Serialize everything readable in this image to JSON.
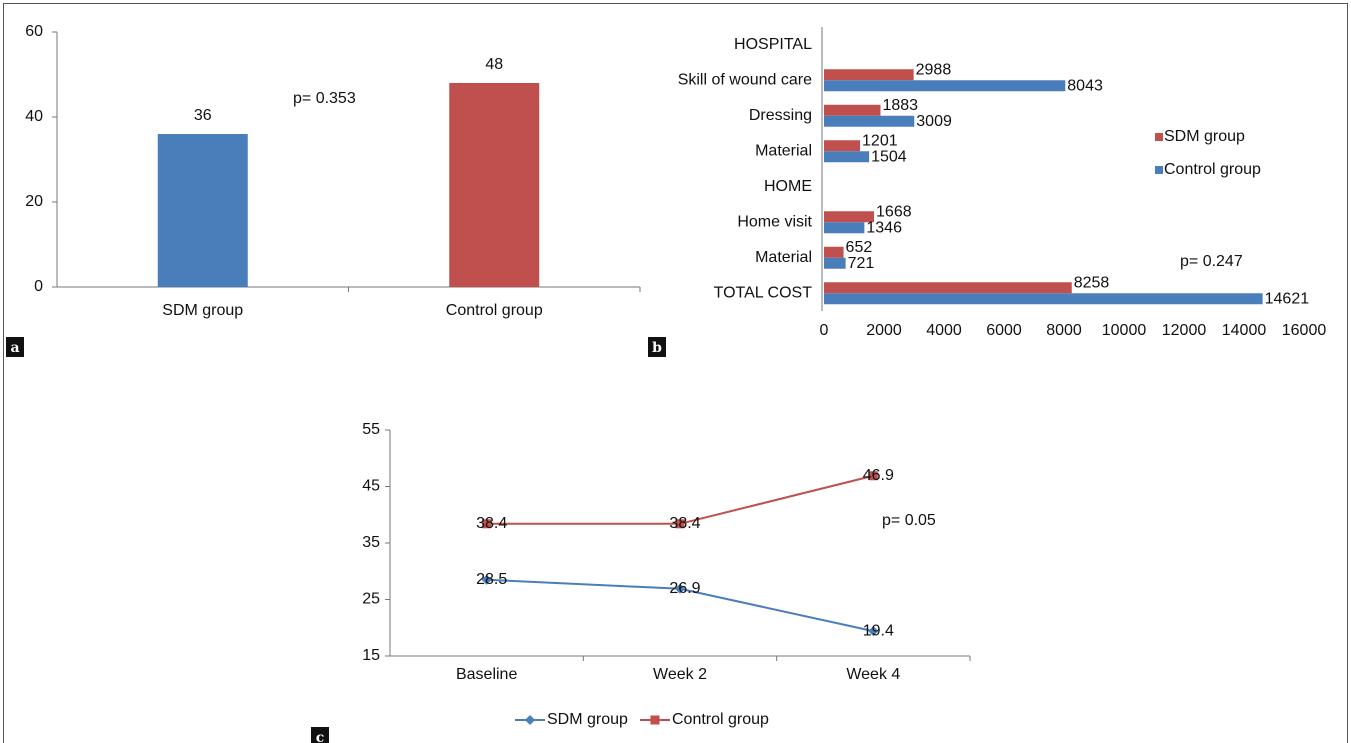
{
  "chart_data": [
    {
      "type": "bar",
      "label": "a",
      "categories": [
        "SDM group",
        "Control group"
      ],
      "values": [
        36,
        48
      ],
      "colors": [
        "#4a7ebb",
        "#c0504d"
      ],
      "ylim": [
        0,
        60
      ],
      "yticks": [
        0,
        20,
        40,
        60
      ],
      "annotation": "p= 0.353"
    },
    {
      "type": "barh",
      "label": "b",
      "categories": [
        "HOSPITAL",
        "Skill of wound care",
        "Dressing",
        "Material",
        "HOME",
        "Home visit",
        "Material",
        "TOTAL COST"
      ],
      "series": [
        {
          "name": "SDM group",
          "color": "#c0504d",
          "values": [
            null,
            2988,
            1883,
            1201,
            null,
            1668,
            652,
            8258
          ]
        },
        {
          "name": "Control group",
          "color": "#4a7ebb",
          "values": [
            null,
            8043,
            3009,
            1504,
            null,
            1346,
            721,
            14621
          ]
        }
      ],
      "xlim": [
        0,
        16000
      ],
      "xticks": [
        0,
        2000,
        4000,
        6000,
        8000,
        10000,
        12000,
        14000,
        16000
      ],
      "legend": "right",
      "annotation": "p= 0.247"
    },
    {
      "type": "line",
      "label": "c",
      "categories": [
        "Baseline",
        "Week 2",
        "Week 4"
      ],
      "series": [
        {
          "name": "SDM group",
          "color": "#4a7ebb",
          "marker": "diamond",
          "values": [
            28.5,
            26.9,
            19.4
          ]
        },
        {
          "name": "Control group",
          "color": "#c0504d",
          "marker": "square",
          "values": [
            38.4,
            38.4,
            46.9
          ]
        }
      ],
      "ylim": [
        15,
        55
      ],
      "yticks": [
        15,
        25,
        35,
        45,
        55
      ],
      "legend": "bottom",
      "annotation": "p= 0.05"
    }
  ]
}
